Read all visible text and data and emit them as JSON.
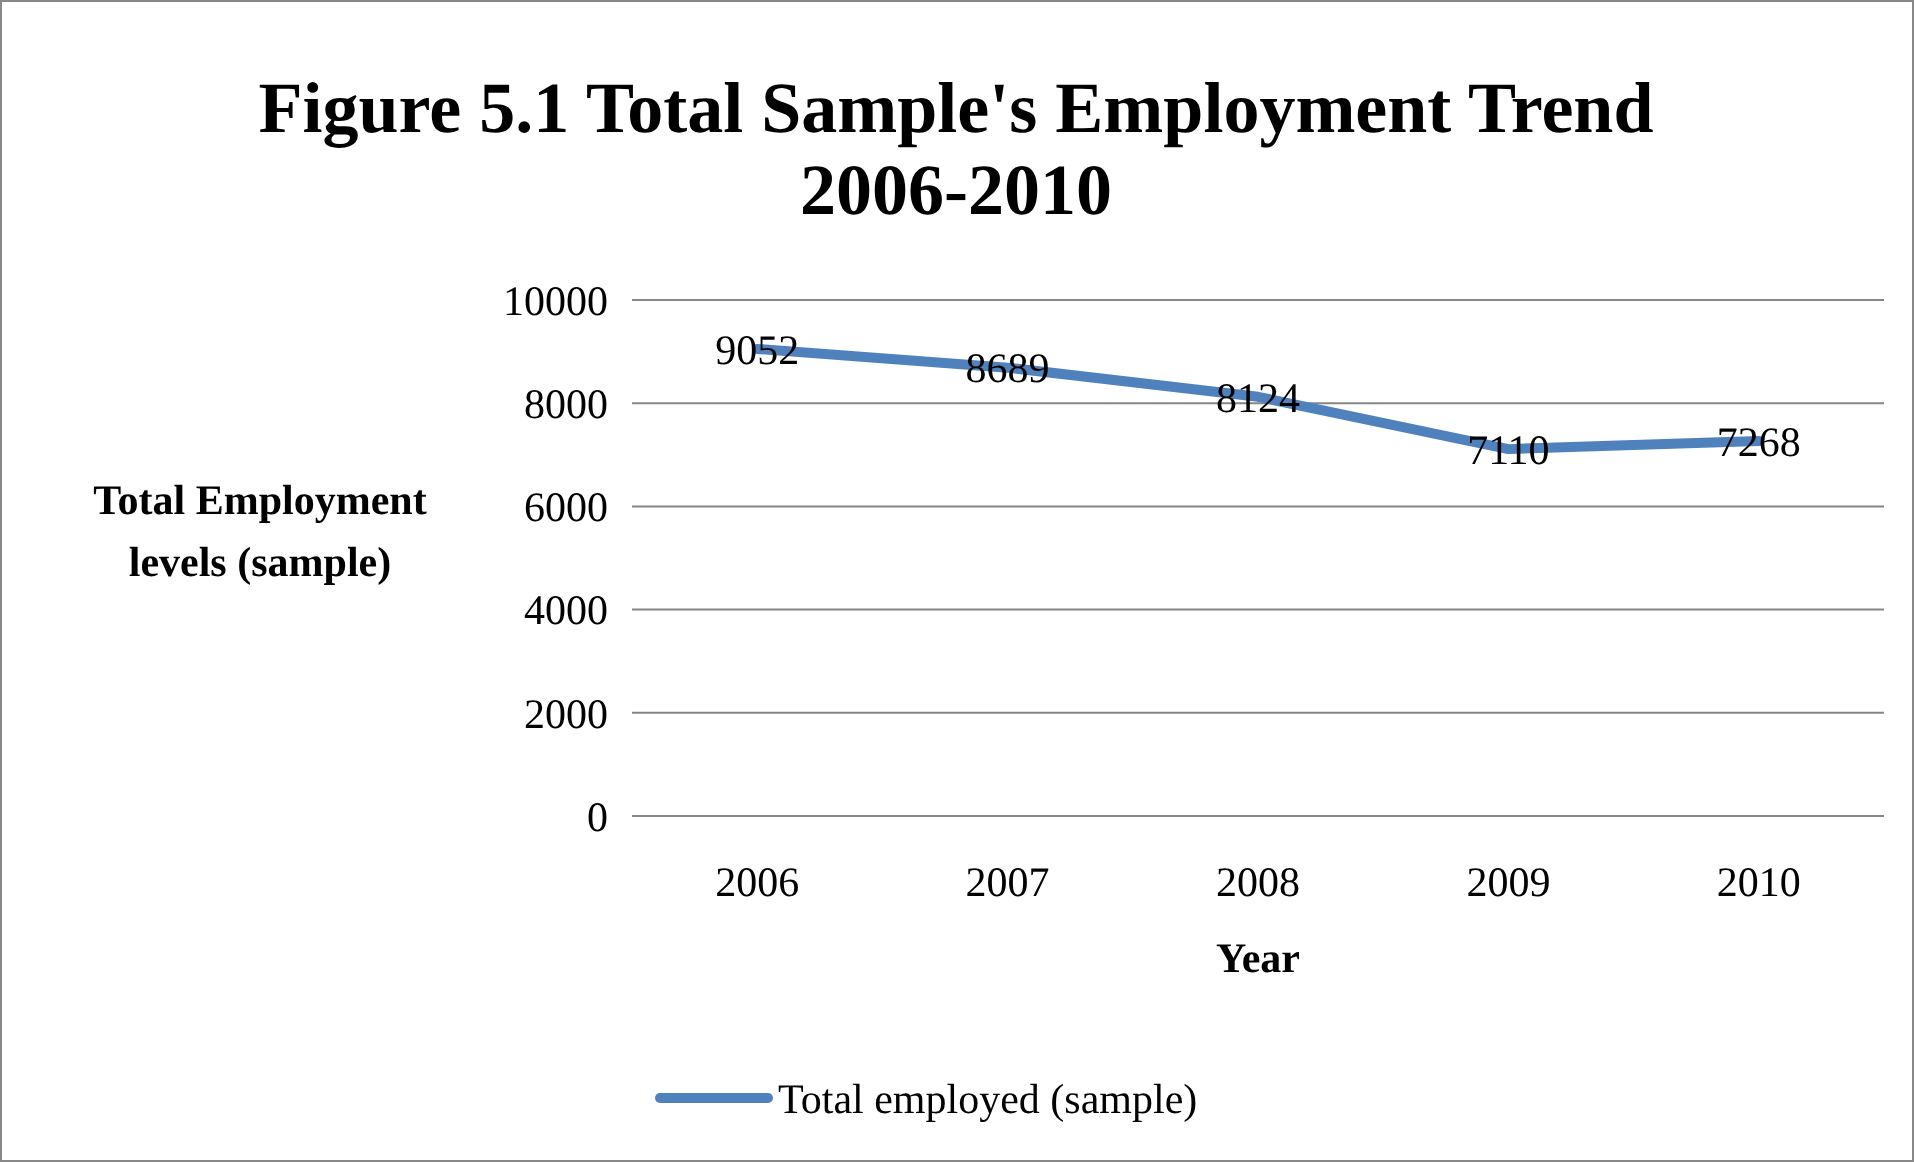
{
  "chart_data": {
    "type": "line",
    "title": "Figure 5.1 Total Sample's Employment Trend 2006-2010",
    "xlabel": "Year",
    "ylabel": "Total Employment levels (sample)",
    "categories": [
      "2006",
      "2007",
      "2008",
      "2009",
      "2010"
    ],
    "series": [
      {
        "name": "Total employed (sample)",
        "color": "#4f81bd",
        "values": [
          9052,
          8689,
          8124,
          7110,
          7268
        ]
      }
    ],
    "ylim": [
      0,
      10000
    ],
    "yticks": [
      0,
      2000,
      4000,
      6000,
      8000,
      10000
    ],
    "grid": "y",
    "legend": "bottom",
    "data_labels": true,
    "marker": "none",
    "line_style": "solid"
  }
}
